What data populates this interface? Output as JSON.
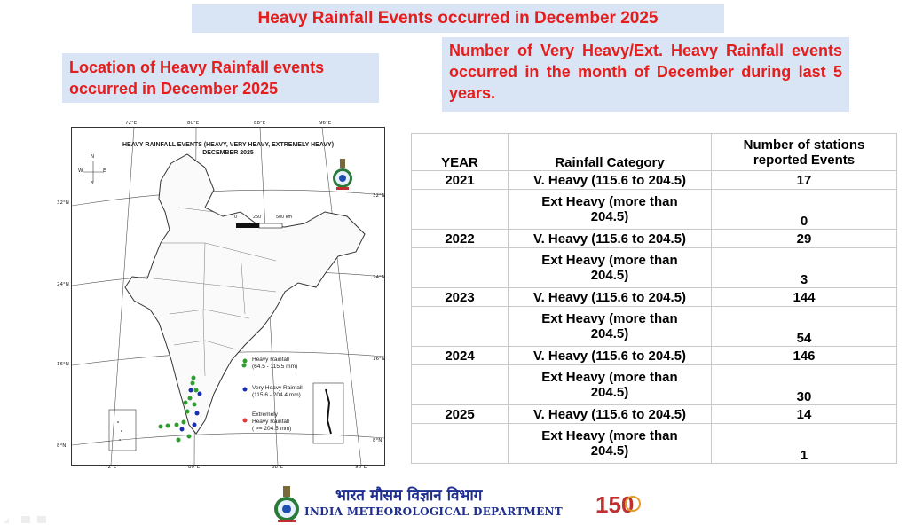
{
  "slide": {
    "title": "Heavy Rainfall Events occurred in December 2025",
    "location_heading": "Location of Heavy Rainfall events occurred in December  2025",
    "number_heading": "Number of Very Heavy/Ext. Heavy Rainfall events occurred in the month of December during  last 5 years."
  },
  "map": {
    "title_line1": "HEAVY RAINFALL EVENTS (HEAVY, VERY HEAVY, EXTREMELY HEAVY)",
    "title_line2": "DECEMBER 2025",
    "lon_labels": [
      "72°E",
      "80°E",
      "88°E",
      "96°E"
    ],
    "lat_labels": [
      "32°N",
      "24°N",
      "16°N",
      "8°N"
    ],
    "scale": {
      "zero": "0",
      "mid": "250",
      "end": "500 km"
    },
    "compass": {
      "n": "N",
      "s": "S",
      "e": "E",
      "w": "W"
    },
    "legend": [
      {
        "label_1": "Heavy Rainfall",
        "label_2": "(64.5 - 115.5 mm)",
        "color": "#2e9e2e"
      },
      {
        "label_1": "Very Heavy Rainfall",
        "label_2": "(115.6 - 204.4 mm)",
        "color": "#1a2fb0"
      },
      {
        "label_1": "Extremely",
        "label_2": "Heavy Rainfall",
        "label_3": "( >= 204.5 mm)",
        "color": "#e03a3a"
      }
    ]
  },
  "table": {
    "headers": {
      "year": "YEAR",
      "category": "Rainfall Category",
      "count_1": "Number of stations",
      "count_2": "reported Events"
    },
    "rows": [
      {
        "year": "2021",
        "vh": "V. Heavy (115.6  to 204.5)",
        "vh_count": "17",
        "ext_1": "Ext Heavy (more than",
        "ext_2": "204.5)",
        "ext_count": "0"
      },
      {
        "year": "2022",
        "vh": "V. Heavy (115.6  to 204.5)",
        "vh_count": "29",
        "ext_1": "Ext Heavy (more than",
        "ext_2": "204.5)",
        "ext_count": "3"
      },
      {
        "year": "2023",
        "vh": "V. Heavy (115.6  to 204.5)",
        "vh_count": "144",
        "ext_1": "Ext Heavy (more than",
        "ext_2": "204.5)",
        "ext_count": "54"
      },
      {
        "year": "2024",
        "vh": "V. Heavy (115.6  to 204.5)",
        "vh_count": "146",
        "ext_1": "Ext Heavy (more than",
        "ext_2": "204.5)",
        "ext_count": "30"
      },
      {
        "year": "2025",
        "vh": "V. Heavy (115.6  to 204.5)",
        "vh_count": "14",
        "ext_1": "Ext Heavy (more than",
        "ext_2": "204.5)",
        "ext_count": "1"
      }
    ]
  },
  "footer": {
    "hindi_name": "भारत मौसम विज्ञान विभाग",
    "english_name": "INDIA METEOROLOGICAL DEPARTMENT",
    "badge_number": "150"
  },
  "colors": {
    "accent_red": "#e41d1d",
    "box_blue": "#d9e4f5",
    "imd_blue": "#1f2f8f"
  }
}
